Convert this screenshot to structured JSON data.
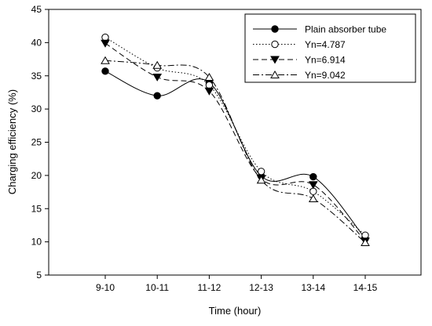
{
  "chart_data": {
    "type": "line",
    "title": "",
    "xlabel": "Time (hour)",
    "ylabel": "Charging efficiency (%)",
    "categories": [
      "9-10",
      "10-11",
      "11-12",
      "12-13",
      "13-14",
      "14-15"
    ],
    "ylim": [
      5,
      45
    ],
    "yticks": [
      5,
      10,
      15,
      20,
      25,
      30,
      35,
      40,
      45
    ],
    "grid": false,
    "legend_position": "top-right",
    "series": [
      {
        "name": "Plain absorber tube",
        "values": [
          35.7,
          32.0,
          34.0,
          19.9,
          19.8,
          10.5
        ],
        "marker": "filled-circle",
        "line_style": "solid",
        "dash": ""
      },
      {
        "name": "Yn=4.787",
        "values": [
          40.8,
          36.2,
          33.6,
          20.6,
          17.6,
          11.0
        ],
        "marker": "open-circle",
        "line_style": "dotted",
        "dash": "1.5,2.5"
      },
      {
        "name": "Yn=6.914",
        "values": [
          39.9,
          34.8,
          32.7,
          19.5,
          18.6,
          10.1
        ],
        "marker": "filled-triangle-down",
        "line_style": "dashed",
        "dash": "7,4"
      },
      {
        "name": "Yn=9.042",
        "values": [
          37.3,
          36.6,
          34.8,
          19.3,
          16.5,
          9.9
        ],
        "marker": "open-triangle-up",
        "line_style": "dash-dot",
        "dash": "8,3,2,3"
      }
    ]
  }
}
